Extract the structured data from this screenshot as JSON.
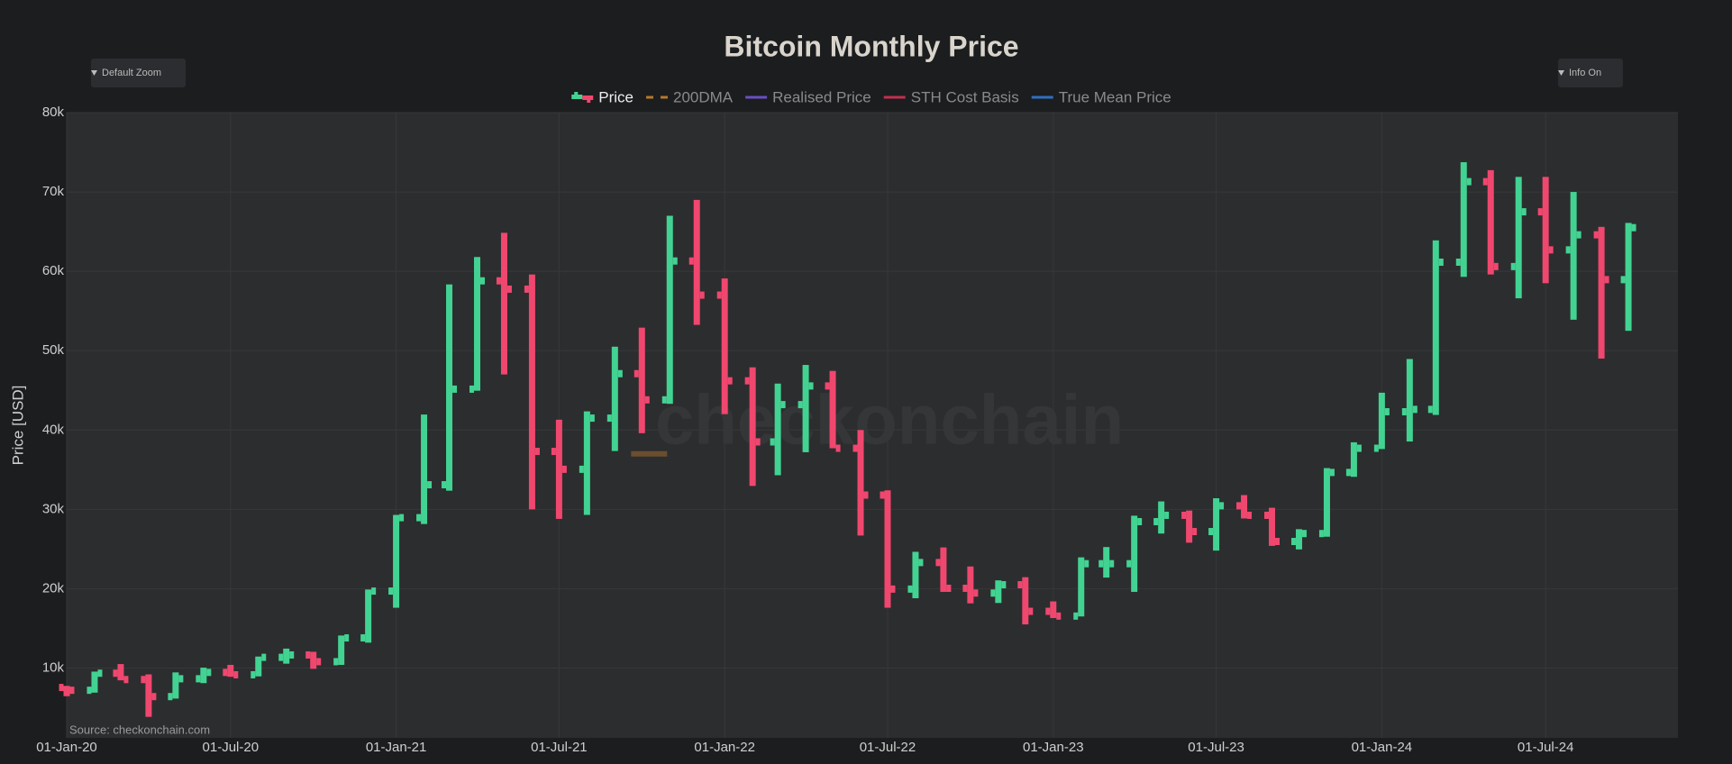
{
  "chart_data": {
    "type": "ohlc",
    "title": "Bitcoin Monthly Price",
    "ylabel": "Price [USD]",
    "source": "Source: checkonchain.com",
    "watermark": "checkonchain",
    "controls": {
      "zoom": "Default Zoom",
      "info": "Info On"
    },
    "x": [
      "2020-01-01",
      "2020-02-01",
      "2020-03-01",
      "2020-04-01",
      "2020-05-01",
      "2020-06-01",
      "2020-07-01",
      "2020-08-01",
      "2020-09-01",
      "2020-10-01",
      "2020-11-01",
      "2020-12-01",
      "2021-01-01",
      "2021-02-01",
      "2021-03-01",
      "2021-04-01",
      "2021-05-01",
      "2021-06-01",
      "2021-07-01",
      "2021-08-01",
      "2021-09-01",
      "2021-10-01",
      "2021-11-01",
      "2021-12-01",
      "2022-01-01",
      "2022-02-01",
      "2022-03-01",
      "2022-04-01",
      "2022-05-01",
      "2022-06-01",
      "2022-07-01",
      "2022-08-01",
      "2022-09-01",
      "2022-10-01",
      "2022-11-01",
      "2022-12-01",
      "2023-01-01",
      "2023-02-01",
      "2023-03-01",
      "2023-04-01",
      "2023-05-01",
      "2023-06-01",
      "2023-07-01",
      "2023-08-01",
      "2023-09-01",
      "2023-10-01",
      "2023-11-01",
      "2023-12-01",
      "2024-01-01",
      "2024-02-01",
      "2024-03-01",
      "2024-04-01",
      "2024-05-01",
      "2024-06-01",
      "2024-07-01",
      "2024-08-01",
      "2024-09-01",
      "2024-10-01"
    ],
    "series": [
      {
        "name": "Price",
        "color_up": "#42d392",
        "color_down": "#f0476f",
        "open": [
          7550,
          7200,
          9350,
          8550,
          6400,
          8650,
          9450,
          9150,
          11350,
          11650,
          10800,
          13800,
          19700,
          28950,
          33100,
          45150,
          58800,
          57750,
          37300,
          35050,
          41500,
          47100,
          43800,
          61300,
          57000,
          46200,
          38500,
          43200,
          45550,
          37700,
          31800,
          19950,
          23300,
          20050,
          19450,
          20500,
          17150,
          16550,
          23150,
          23150,
          28450,
          29250,
          27200,
          30450,
          29250,
          25950,
          26950,
          34650,
          37700,
          42300,
          42600,
          61150,
          71300,
          60600,
          67500,
          62700,
          64600,
          58950
        ],
        "high": [
          7750,
          9550,
          10500,
          9200,
          9450,
          10050,
          10400,
          11450,
          12450,
          12050,
          14100,
          19900,
          29300,
          41950,
          58350,
          61800,
          64850,
          59600,
          41300,
          42350,
          50500,
          52900,
          67000,
          69000,
          59100,
          47900,
          45850,
          48200,
          47450,
          40000,
          32400,
          24650,
          25200,
          22800,
          21050,
          21450,
          18400,
          23950,
          25250,
          29200,
          31000,
          29850,
          31400,
          31800,
          30200,
          27500,
          35200,
          38450,
          44700,
          48950,
          63900,
          73750,
          72750,
          71900,
          71900,
          70000,
          65600,
          66100
        ],
        "low": [
          6450,
          6900,
          8450,
          3850,
          6150,
          8100,
          8900,
          8950,
          10550,
          9900,
          10400,
          13200,
          17600,
          28150,
          32350,
          44950,
          47000,
          30000,
          28800,
          29300,
          37350,
          39600,
          43300,
          53250,
          42000,
          32950,
          34300,
          37200,
          37700,
          26700,
          17600,
          18800,
          19600,
          18150,
          18200,
          15500,
          16300,
          16500,
          21400,
          19600,
          26950,
          25800,
          24800,
          28850,
          25400,
          24950,
          26550,
          34100,
          37600,
          38550,
          41900,
          59300,
          59600,
          56600,
          58500,
          53900,
          49000,
          52500
        ],
        "close": [
          7200,
          9350,
          8550,
          6400,
          8650,
          9450,
          9150,
          11350,
          11650,
          10800,
          13800,
          19700,
          28950,
          33100,
          45150,
          58800,
          57750,
          37300,
          35050,
          41500,
          47100,
          43800,
          61300,
          57000,
          46200,
          38500,
          43200,
          45550,
          37700,
          31800,
          19950,
          23300,
          20050,
          19450,
          20500,
          17150,
          16550,
          23150,
          23150,
          28450,
          29250,
          27200,
          30450,
          29250,
          25950,
          26950,
          34650,
          37700,
          42300,
          42600,
          61150,
          71300,
          60600,
          67500,
          62700,
          64600,
          58950,
          65500
        ]
      },
      {
        "name": "200DMA",
        "color": "#b5782e",
        "dash": true,
        "x": [
          "2021-09-19",
          "2021-10-29"
        ],
        "values": [
          37000,
          37000
        ]
      },
      {
        "name": "Realised Price",
        "color": "#6a4fc2"
      },
      {
        "name": "STH Cost Basis",
        "color": "#c0304f"
      },
      {
        "name": "True Mean Price",
        "color": "#2f6fc0"
      }
    ],
    "xlim": [
      "2020-01-01",
      "2024-11-25"
    ],
    "xticks": [
      {
        "value": "2020-01-01",
        "label": "01-Jan-20"
      },
      {
        "value": "2020-07-01",
        "label": "01-Jul-20"
      },
      {
        "value": "2021-01-01",
        "label": "01-Jan-21"
      },
      {
        "value": "2021-07-01",
        "label": "01-Jul-21"
      },
      {
        "value": "2022-01-01",
        "label": "01-Jan-22"
      },
      {
        "value": "2022-07-01",
        "label": "01-Jul-22"
      },
      {
        "value": "2023-01-01",
        "label": "01-Jan-23"
      },
      {
        "value": "2023-07-01",
        "label": "01-Jul-23"
      },
      {
        "value": "2024-01-01",
        "label": "01-Jan-24"
      },
      {
        "value": "2024-07-01",
        "label": "01-Jul-24"
      }
    ],
    "ylim": [
      1200,
      80000
    ],
    "yticks": [
      {
        "value": 10000,
        "label": "10k"
      },
      {
        "value": 20000,
        "label": "20k"
      },
      {
        "value": 30000,
        "label": "30k"
      },
      {
        "value": 40000,
        "label": "40k"
      },
      {
        "value": 50000,
        "label": "50k"
      },
      {
        "value": 60000,
        "label": "60k"
      },
      {
        "value": 70000,
        "label": "70k"
      },
      {
        "value": 80000,
        "label": "80k"
      }
    ],
    "grid": true
  }
}
